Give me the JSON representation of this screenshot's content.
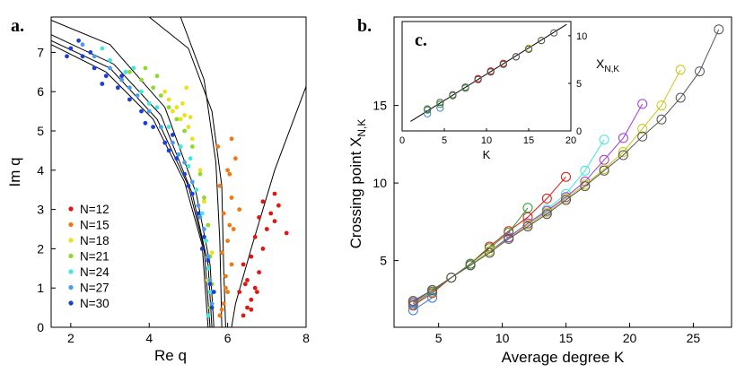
{
  "panel_a": {
    "letter": "a.",
    "xlabel": "Re q",
    "ylabel": "Im q",
    "xticks": [
      "2",
      "4",
      "6",
      "8"
    ],
    "yticks": [
      "0",
      "1",
      "2",
      "3",
      "4",
      "5",
      "6",
      "7"
    ]
  },
  "panel_b": {
    "letter": "b.",
    "xlabel": "Average degree K",
    "ylabel_main": "Crossing point X",
    "ylabel_sub": "N,K",
    "xticks": [
      "5",
      "10",
      "15",
      "20",
      "25"
    ],
    "yticks": [
      "5",
      "10",
      "15"
    ]
  },
  "panel_c": {
    "letter": "c.",
    "xlabel": "K",
    "ylabel_main": "X",
    "ylabel_sub": "N,K",
    "xticks": [
      "0",
      "5",
      "10",
      "15",
      "20"
    ],
    "yticks": [
      "0",
      "5",
      "10"
    ]
  },
  "chart_data": [
    {
      "id": "a",
      "type": "scatter",
      "title": "",
      "xlabel": "Re q",
      "ylabel": "Im q",
      "xlim": [
        1.5,
        8
      ],
      "ylim": [
        0,
        7.9
      ],
      "legend_position": "bottom-left",
      "series": [
        {
          "name": "N=12",
          "color": "#e0160f",
          "points": [
            [
              6.4,
              0.3
            ],
            [
              6.5,
              0.5
            ],
            [
              6.6,
              0.7
            ],
            [
              6.3,
              0.9
            ],
            [
              6.7,
              1.0
            ],
            [
              6.5,
              1.2
            ],
            [
              6.8,
              1.4
            ],
            [
              6.4,
              1.6
            ],
            [
              6.6,
              1.8
            ],
            [
              6.9,
              2.0
            ],
            [
              6.7,
              2.3
            ],
            [
              7.0,
              2.5
            ],
            [
              7.2,
              2.7
            ],
            [
              7.1,
              2.9
            ],
            [
              7.3,
              3.1
            ],
            [
              6.9,
              3.2
            ],
            [
              7.2,
              3.4
            ],
            [
              7.5,
              2.4
            ],
            [
              6.8,
              2.8
            ],
            [
              6.45,
              1.1
            ],
            [
              6.6,
              0.45
            ],
            [
              6.75,
              0.9
            ]
          ]
        },
        {
          "name": "N=15",
          "color": "#f07a12",
          "points": [
            [
              5.8,
              0.3
            ],
            [
              5.9,
              0.6
            ],
            [
              6.0,
              0.9
            ],
            [
              5.95,
              1.3
            ],
            [
              6.1,
              1.6
            ],
            [
              5.85,
              1.9
            ],
            [
              6.0,
              2.2
            ],
            [
              6.05,
              2.6
            ],
            [
              5.9,
              2.9
            ],
            [
              6.1,
              3.3
            ],
            [
              5.8,
              3.6
            ],
            [
              6.05,
              3.9
            ],
            [
              6.2,
              4.3
            ],
            [
              5.75,
              4.6
            ],
            [
              6.1,
              4.8
            ],
            [
              6.3,
              3.0
            ],
            [
              5.95,
              1.0
            ],
            [
              6.15,
              2.5
            ],
            [
              5.85,
              0.45
            ],
            [
              6.0,
              4.0
            ]
          ]
        },
        {
          "name": "N=18",
          "color": "#e8e21a",
          "points": [
            [
              4.7,
              5.6
            ],
            [
              4.8,
              5.3
            ],
            [
              4.5,
              5.8
            ],
            [
              4.9,
              5.4
            ],
            [
              5.0,
              5.1
            ],
            [
              4.6,
              5.5
            ],
            [
              4.85,
              5.7
            ],
            [
              5.1,
              4.8
            ],
            [
              5.3,
              4.0
            ],
            [
              5.4,
              3.2
            ],
            [
              5.5,
              2.6
            ],
            [
              5.6,
              1.9
            ],
            [
              5.5,
              1.2
            ],
            [
              5.6,
              0.6
            ],
            [
              4.4,
              6.0
            ],
            [
              4.95,
              6.1
            ],
            [
              5.05,
              5.35
            ]
          ]
        },
        {
          "name": "N=21",
          "color": "#8fd82c",
          "points": [
            [
              3.8,
              6.3
            ],
            [
              4.1,
              6.1
            ],
            [
              4.3,
              5.9
            ],
            [
              4.5,
              5.6
            ],
            [
              4.7,
              5.3
            ],
            [
              4.9,
              5.0
            ],
            [
              5.1,
              4.6
            ],
            [
              5.3,
              3.9
            ],
            [
              5.4,
              3.3
            ],
            [
              5.5,
              2.6
            ],
            [
              5.55,
              1.8
            ],
            [
              5.6,
              1.1
            ],
            [
              5.55,
              0.5
            ],
            [
              3.5,
              6.5
            ],
            [
              3.9,
              6.6
            ],
            [
              4.2,
              6.4
            ]
          ]
        },
        {
          "name": "N=24",
          "color": "#40e8d8",
          "points": [
            [
              3.0,
              6.8
            ],
            [
              3.4,
              6.5
            ],
            [
              3.8,
              6.0
            ],
            [
              4.2,
              5.6
            ],
            [
              4.5,
              5.1
            ],
            [
              4.8,
              4.6
            ],
            [
              5.0,
              4.1
            ],
            [
              5.2,
              3.5
            ],
            [
              5.35,
              2.9
            ],
            [
              5.45,
              2.2
            ],
            [
              5.5,
              1.5
            ],
            [
              5.55,
              0.9
            ],
            [
              5.5,
              0.3
            ],
            [
              2.8,
              7.1
            ],
            [
              3.6,
              6.6
            ],
            [
              4.0,
              5.7
            ],
            [
              5.05,
              4.3
            ]
          ]
        },
        {
          "name": "N=27",
          "color": "#4a9cf0",
          "points": [
            [
              2.6,
              6.9
            ],
            [
              3.0,
              6.6
            ],
            [
              3.3,
              6.3
            ],
            [
              3.7,
              5.9
            ],
            [
              4.0,
              5.5
            ],
            [
              4.3,
              5.1
            ],
            [
              4.6,
              4.7
            ],
            [
              4.9,
              4.2
            ],
            [
              5.1,
              3.7
            ],
            [
              5.25,
              3.1
            ],
            [
              5.4,
              2.5
            ],
            [
              5.5,
              1.8
            ],
            [
              5.55,
              1.2
            ],
            [
              5.6,
              0.6
            ],
            [
              2.3,
              7.2
            ],
            [
              3.5,
              6.1
            ],
            [
              4.75,
              4.4
            ],
            [
              5.3,
              2.8
            ]
          ]
        },
        {
          "name": "N=30",
          "color": "#1a3fd8",
          "points": [
            [
              2.0,
              7.1
            ],
            [
              2.3,
              6.9
            ],
            [
              2.6,
              6.6
            ],
            [
              2.9,
              6.4
            ],
            [
              3.2,
              6.1
            ],
            [
              3.5,
              5.8
            ],
            [
              3.8,
              5.5
            ],
            [
              4.1,
              5.1
            ],
            [
              4.4,
              4.7
            ],
            [
              4.7,
              4.3
            ],
            [
              4.9,
              3.9
            ],
            [
              5.1,
              3.4
            ],
            [
              5.25,
              2.9
            ],
            [
              5.4,
              2.3
            ],
            [
              5.5,
              1.7
            ],
            [
              5.55,
              1.1
            ],
            [
              5.6,
              0.5
            ],
            [
              2.2,
              7.3
            ],
            [
              2.8,
              6.2
            ],
            [
              3.3,
              6.4
            ],
            [
              3.9,
              5.2
            ],
            [
              4.5,
              4.5
            ],
            [
              5.0,
              3.6
            ],
            [
              5.35,
              2.0
            ],
            [
              5.65,
              0.9
            ],
            [
              1.9,
              6.9
            ],
            [
              2.5,
              7.0
            ],
            [
              4.6,
              4.9
            ]
          ]
        }
      ],
      "curves_note": "black curves: arcs through (1.6,7.3)-(5.7,0) and parabola-like curves reaching (8,6.2) and (4.8,7.9)"
    },
    {
      "id": "b",
      "type": "line",
      "title": "",
      "xlabel": "Average degree K",
      "ylabel": "Crossing point X_{N,K}",
      "xlim": [
        1.5,
        28
      ],
      "ylim": [
        0.7,
        20.7
      ],
      "series": [
        {
          "name": "N=12",
          "color": "#e0160f",
          "x": [
            3,
            4.5,
            6,
            7.5,
            9,
            10.5,
            12,
            13.5,
            15
          ],
          "y": [
            2.1,
            2.9,
            3.9,
            4.8,
            5.9,
            6.9,
            7.8,
            9.0,
            10.4
          ]
        },
        {
          "name": "N=15",
          "color": "#2a9a2a",
          "x": [
            3,
            4.5,
            6,
            7.5,
            9,
            10.5,
            12
          ],
          "y": [
            2.2,
            3.0,
            3.9,
            4.8,
            5.8,
            6.8,
            8.4
          ]
        },
        {
          "name": "N=18",
          "color": "#40e8d8",
          "x": [
            3,
            4.5,
            6,
            7.5,
            9,
            10.5,
            12,
            13.5,
            15,
            16.5,
            18
          ],
          "y": [
            2.3,
            3.1,
            3.9,
            4.7,
            5.6,
            6.5,
            7.4,
            8.3,
            9.3,
            10.8,
            12.8
          ]
        },
        {
          "name": "N=21",
          "color": "#a23ad8",
          "x": [
            3,
            4.5,
            6,
            7.5,
            9,
            10.5,
            12,
            13.5,
            15,
            16.5,
            18,
            19.5,
            21
          ],
          "y": [
            2.3,
            3.1,
            3.9,
            4.7,
            5.6,
            6.5,
            7.4,
            8.2,
            9.1,
            10.1,
            11.5,
            12.9,
            15.1
          ]
        },
        {
          "name": "N=24",
          "color": "#c8c818",
          "x": [
            3,
            4.5,
            6,
            7.5,
            9,
            10.5,
            12,
            13.5,
            15,
            16.5,
            18,
            19.5,
            21,
            22.5,
            24
          ],
          "y": [
            2.4,
            3.1,
            3.9,
            4.7,
            5.6,
            6.4,
            7.3,
            8.1,
            9.0,
            9.9,
            10.9,
            12.0,
            13.5,
            15.0,
            17.3
          ]
        },
        {
          "name": "N=27",
          "color": "#555555",
          "x": [
            3,
            4.5,
            6,
            7.5,
            9,
            10.5,
            12,
            13.5,
            15,
            16.5,
            18,
            19.5,
            21,
            22.5,
            24,
            25.5,
            27
          ],
          "y": [
            2.4,
            3.1,
            3.9,
            4.7,
            5.5,
            6.4,
            7.2,
            8.0,
            8.9,
            9.8,
            10.8,
            11.8,
            13.0,
            14.1,
            15.5,
            17.2,
            19.9
          ]
        },
        {
          "name": "N=30",
          "color": "#3a7ad8",
          "x": [
            3,
            4.5
          ],
          "y": [
            1.8,
            2.6
          ]
        }
      ]
    },
    {
      "id": "c",
      "type": "scatter",
      "title": "",
      "xlabel": "K",
      "ylabel": "X_{N,K}",
      "xlim": [
        0,
        20
      ],
      "ylim": [
        0,
        11.5
      ],
      "fit_line": {
        "x": [
          1,
          19.5
        ],
        "y": [
          1.0,
          11.2
        ]
      },
      "series": [
        {
          "name": "N=30",
          "color": "#3a7ad8",
          "x": [
            3,
            4.5
          ],
          "y": [
            1.8,
            2.4
          ]
        },
        {
          "name": "N=15",
          "color": "#2a9a2a",
          "x": [
            3,
            4.5,
            6,
            7.5,
            9,
            10.5,
            12
          ],
          "y": [
            2.2,
            2.8,
            3.7,
            4.5,
            5.4,
            6.2,
            7.0
          ]
        },
        {
          "name": "N=12",
          "color": "#e0160f",
          "x": [
            9,
            10.5,
            12
          ],
          "y": [
            5.5,
            6.3,
            7.1
          ]
        },
        {
          "name": "N=21",
          "color": "#a23ad8",
          "x": [
            13.5,
            15
          ],
          "y": [
            7.8,
            8.6
          ]
        },
        {
          "name": "N=24",
          "color": "#c8c818",
          "x": [
            15,
            16.5
          ],
          "y": [
            8.7,
            9.5
          ]
        },
        {
          "name": "N=27",
          "color": "#555555",
          "x": [
            3,
            4.5,
            6,
            7.5,
            9,
            10.5,
            12,
            13.5,
            15,
            16.5,
            18
          ],
          "y": [
            2.3,
            3.0,
            3.8,
            4.6,
            5.4,
            6.2,
            7.0,
            7.8,
            8.6,
            9.5,
            10.3
          ]
        }
      ]
    }
  ]
}
